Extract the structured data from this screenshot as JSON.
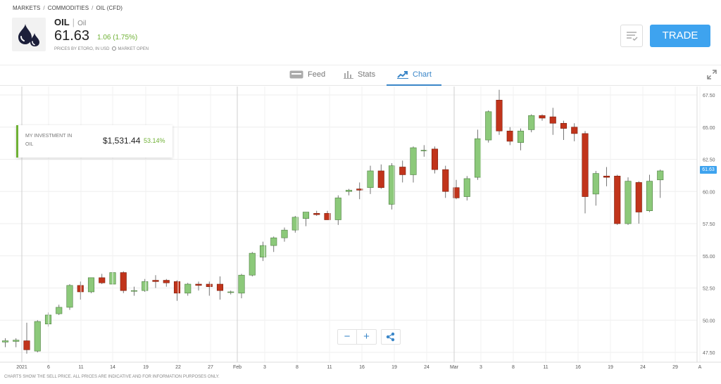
{
  "breadcrumb": [
    "MARKETS",
    "COMMODITIES",
    "OIL (CFD)"
  ],
  "instrument": {
    "symbol": "OIL",
    "name": "Oil",
    "price": "61.63",
    "change": "1.06 (1.75%)",
    "meta_prices": "PRICES BY ETORO, IN USD",
    "meta_market": "MARKET OPEN",
    "logo_icon": "oil-drops-icon"
  },
  "header": {
    "watchlist_icon": "watchlist-icon",
    "trade_label": "TRADE"
  },
  "tabs": [
    {
      "label": "Feed",
      "icon": "feed-icon"
    },
    {
      "label": "Stats",
      "icon": "stats-icon"
    },
    {
      "label": "Chart",
      "icon": "chart-icon"
    }
  ],
  "investment": {
    "label": "MY INVESTMENT IN OIL",
    "amount": "$1,531.44",
    "percent": "53.14%"
  },
  "controls": {
    "zoom_out": "−",
    "zoom_in": "+",
    "share_icon": "share-icon",
    "expand_icon": "expand-icon"
  },
  "disclaimer": "CHARTS SHOW THE SELL PRICE. ALL PRICES ARE INDICATIVE AND FOR INFORMATION PURPOSES ONLY.",
  "colors": {
    "up": "#8cc97a",
    "down": "#c1341b",
    "accent": "#3ea3ef",
    "positive": "#6fb135"
  },
  "chart_data": {
    "type": "candlestick",
    "ylim": [
      47,
      68
    ],
    "y_ticks": [
      "47.50",
      "50.00",
      "52.50",
      "55.00",
      "57.50",
      "60.00",
      "62.50",
      "65.00",
      "67.50"
    ],
    "current_price_label": "61.63",
    "x_tick_labels": [
      "2021",
      "6",
      "11",
      "14",
      "19",
      "22",
      "27",
      "Feb",
      "3",
      "8",
      "11",
      "16",
      "19",
      "24",
      "Mar",
      "3",
      "8",
      "11",
      "16",
      "19",
      "24",
      "29",
      "A"
    ],
    "candles": [
      {
        "o": 48.3,
        "h": 48.6,
        "l": 47.9,
        "c": 48.4
      },
      {
        "o": 48.35,
        "h": 48.6,
        "l": 47.9,
        "c": 48.45
      },
      {
        "o": 48.4,
        "h": 49.8,
        "l": 47.4,
        "c": 47.7
      },
      {
        "o": 47.6,
        "h": 50.0,
        "l": 47.5,
        "c": 49.9
      },
      {
        "o": 49.7,
        "h": 50.6,
        "l": 49.5,
        "c": 50.4
      },
      {
        "o": 50.5,
        "h": 51.2,
        "l": 50.4,
        "c": 51.0
      },
      {
        "o": 51.0,
        "h": 52.8,
        "l": 50.8,
        "c": 52.7
      },
      {
        "o": 52.7,
        "h": 53.0,
        "l": 51.6,
        "c": 52.2
      },
      {
        "o": 52.2,
        "h": 53.3,
        "l": 52.1,
        "c": 53.3
      },
      {
        "o": 53.3,
        "h": 53.6,
        "l": 52.8,
        "c": 52.9
      },
      {
        "o": 52.8,
        "h": 53.9,
        "l": 52.5,
        "c": 53.7
      },
      {
        "o": 53.7,
        "h": 53.8,
        "l": 52.1,
        "c": 52.3
      },
      {
        "o": 52.3,
        "h": 52.6,
        "l": 51.9,
        "c": 52.3
      },
      {
        "o": 52.3,
        "h": 53.2,
        "l": 52.2,
        "c": 53.0
      },
      {
        "o": 53.1,
        "h": 53.5,
        "l": 52.5,
        "c": 53.0
      },
      {
        "o": 53.1,
        "h": 53.2,
        "l": 52.6,
        "c": 52.9
      },
      {
        "o": 53.0,
        "h": 53.1,
        "l": 51.5,
        "c": 52.1
      },
      {
        "o": 52.1,
        "h": 52.9,
        "l": 51.9,
        "c": 52.8
      },
      {
        "o": 52.8,
        "h": 53.0,
        "l": 52.3,
        "c": 52.7
      },
      {
        "o": 52.8,
        "h": 53.0,
        "l": 51.9,
        "c": 52.6
      },
      {
        "o": 52.8,
        "h": 53.4,
        "l": 51.6,
        "c": 52.3
      },
      {
        "o": 52.2,
        "h": 52.3,
        "l": 52.0,
        "c": 52.2
      },
      {
        "o": 52.1,
        "h": 53.6,
        "l": 51.7,
        "c": 53.5
      },
      {
        "o": 53.5,
        "h": 55.3,
        "l": 53.4,
        "c": 55.2
      },
      {
        "o": 54.9,
        "h": 56.1,
        "l": 54.6,
        "c": 55.8
      },
      {
        "o": 55.8,
        "h": 56.5,
        "l": 55.3,
        "c": 56.4
      },
      {
        "o": 56.4,
        "h": 57.2,
        "l": 56.1,
        "c": 57.0
      },
      {
        "o": 57.0,
        "h": 58.1,
        "l": 56.8,
        "c": 58.0
      },
      {
        "o": 57.9,
        "h": 58.4,
        "l": 57.3,
        "c": 58.4
      },
      {
        "o": 58.3,
        "h": 58.5,
        "l": 58.1,
        "c": 58.2
      },
      {
        "o": 58.3,
        "h": 58.5,
        "l": 57.8,
        "c": 57.8
      },
      {
        "o": 57.8,
        "h": 59.7,
        "l": 57.4,
        "c": 59.5
      },
      {
        "o": 60.0,
        "h": 60.2,
        "l": 59.7,
        "c": 60.1
      },
      {
        "o": 60.2,
        "h": 60.7,
        "l": 59.4,
        "c": 60.1
      },
      {
        "o": 60.3,
        "h": 62.0,
        "l": 59.8,
        "c": 61.6
      },
      {
        "o": 61.6,
        "h": 62.1,
        "l": 60.2,
        "c": 60.3
      },
      {
        "o": 59.0,
        "h": 62.2,
        "l": 58.6,
        "c": 62.0
      },
      {
        "o": 61.9,
        "h": 62.4,
        "l": 60.7,
        "c": 61.3
      },
      {
        "o": 61.3,
        "h": 63.5,
        "l": 60.7,
        "c": 63.4
      },
      {
        "o": 63.2,
        "h": 63.6,
        "l": 62.7,
        "c": 63.2
      },
      {
        "o": 63.3,
        "h": 63.5,
        "l": 61.4,
        "c": 61.7
      },
      {
        "o": 61.7,
        "h": 62.0,
        "l": 59.5,
        "c": 60.0
      },
      {
        "o": 60.3,
        "h": 60.9,
        "l": 59.4,
        "c": 59.5
      },
      {
        "o": 59.6,
        "h": 61.2,
        "l": 59.3,
        "c": 61.0
      },
      {
        "o": 61.1,
        "h": 64.8,
        "l": 60.9,
        "c": 64.1
      },
      {
        "o": 64.0,
        "h": 66.3,
        "l": 63.8,
        "c": 66.2
      },
      {
        "o": 67.1,
        "h": 67.9,
        "l": 64.4,
        "c": 64.7
      },
      {
        "o": 64.7,
        "h": 65.0,
        "l": 63.6,
        "c": 63.9
      },
      {
        "o": 63.8,
        "h": 64.9,
        "l": 63.2,
        "c": 64.7
      },
      {
        "o": 64.8,
        "h": 66.0,
        "l": 64.6,
        "c": 65.9
      },
      {
        "o": 65.9,
        "h": 66.0,
        "l": 65.5,
        "c": 65.7
      },
      {
        "o": 65.8,
        "h": 66.5,
        "l": 64.4,
        "c": 65.3
      },
      {
        "o": 65.3,
        "h": 65.5,
        "l": 64.0,
        "c": 64.9
      },
      {
        "o": 65.0,
        "h": 65.3,
        "l": 63.9,
        "c": 64.5
      },
      {
        "o": 64.5,
        "h": 64.7,
        "l": 58.3,
        "c": 59.6
      },
      {
        "o": 59.8,
        "h": 61.6,
        "l": 58.9,
        "c": 61.4
      },
      {
        "o": 61.2,
        "h": 61.9,
        "l": 60.4,
        "c": 61.1
      },
      {
        "o": 61.2,
        "h": 61.3,
        "l": 57.4,
        "c": 57.5
      },
      {
        "o": 57.5,
        "h": 61.1,
        "l": 57.4,
        "c": 60.8
      },
      {
        "o": 60.7,
        "h": 60.8,
        "l": 57.5,
        "c": 58.4
      },
      {
        "o": 58.5,
        "h": 61.3,
        "l": 58.4,
        "c": 60.8
      },
      {
        "o": 60.9,
        "h": 61.7,
        "l": 59.5,
        "c": 61.6
      }
    ]
  }
}
